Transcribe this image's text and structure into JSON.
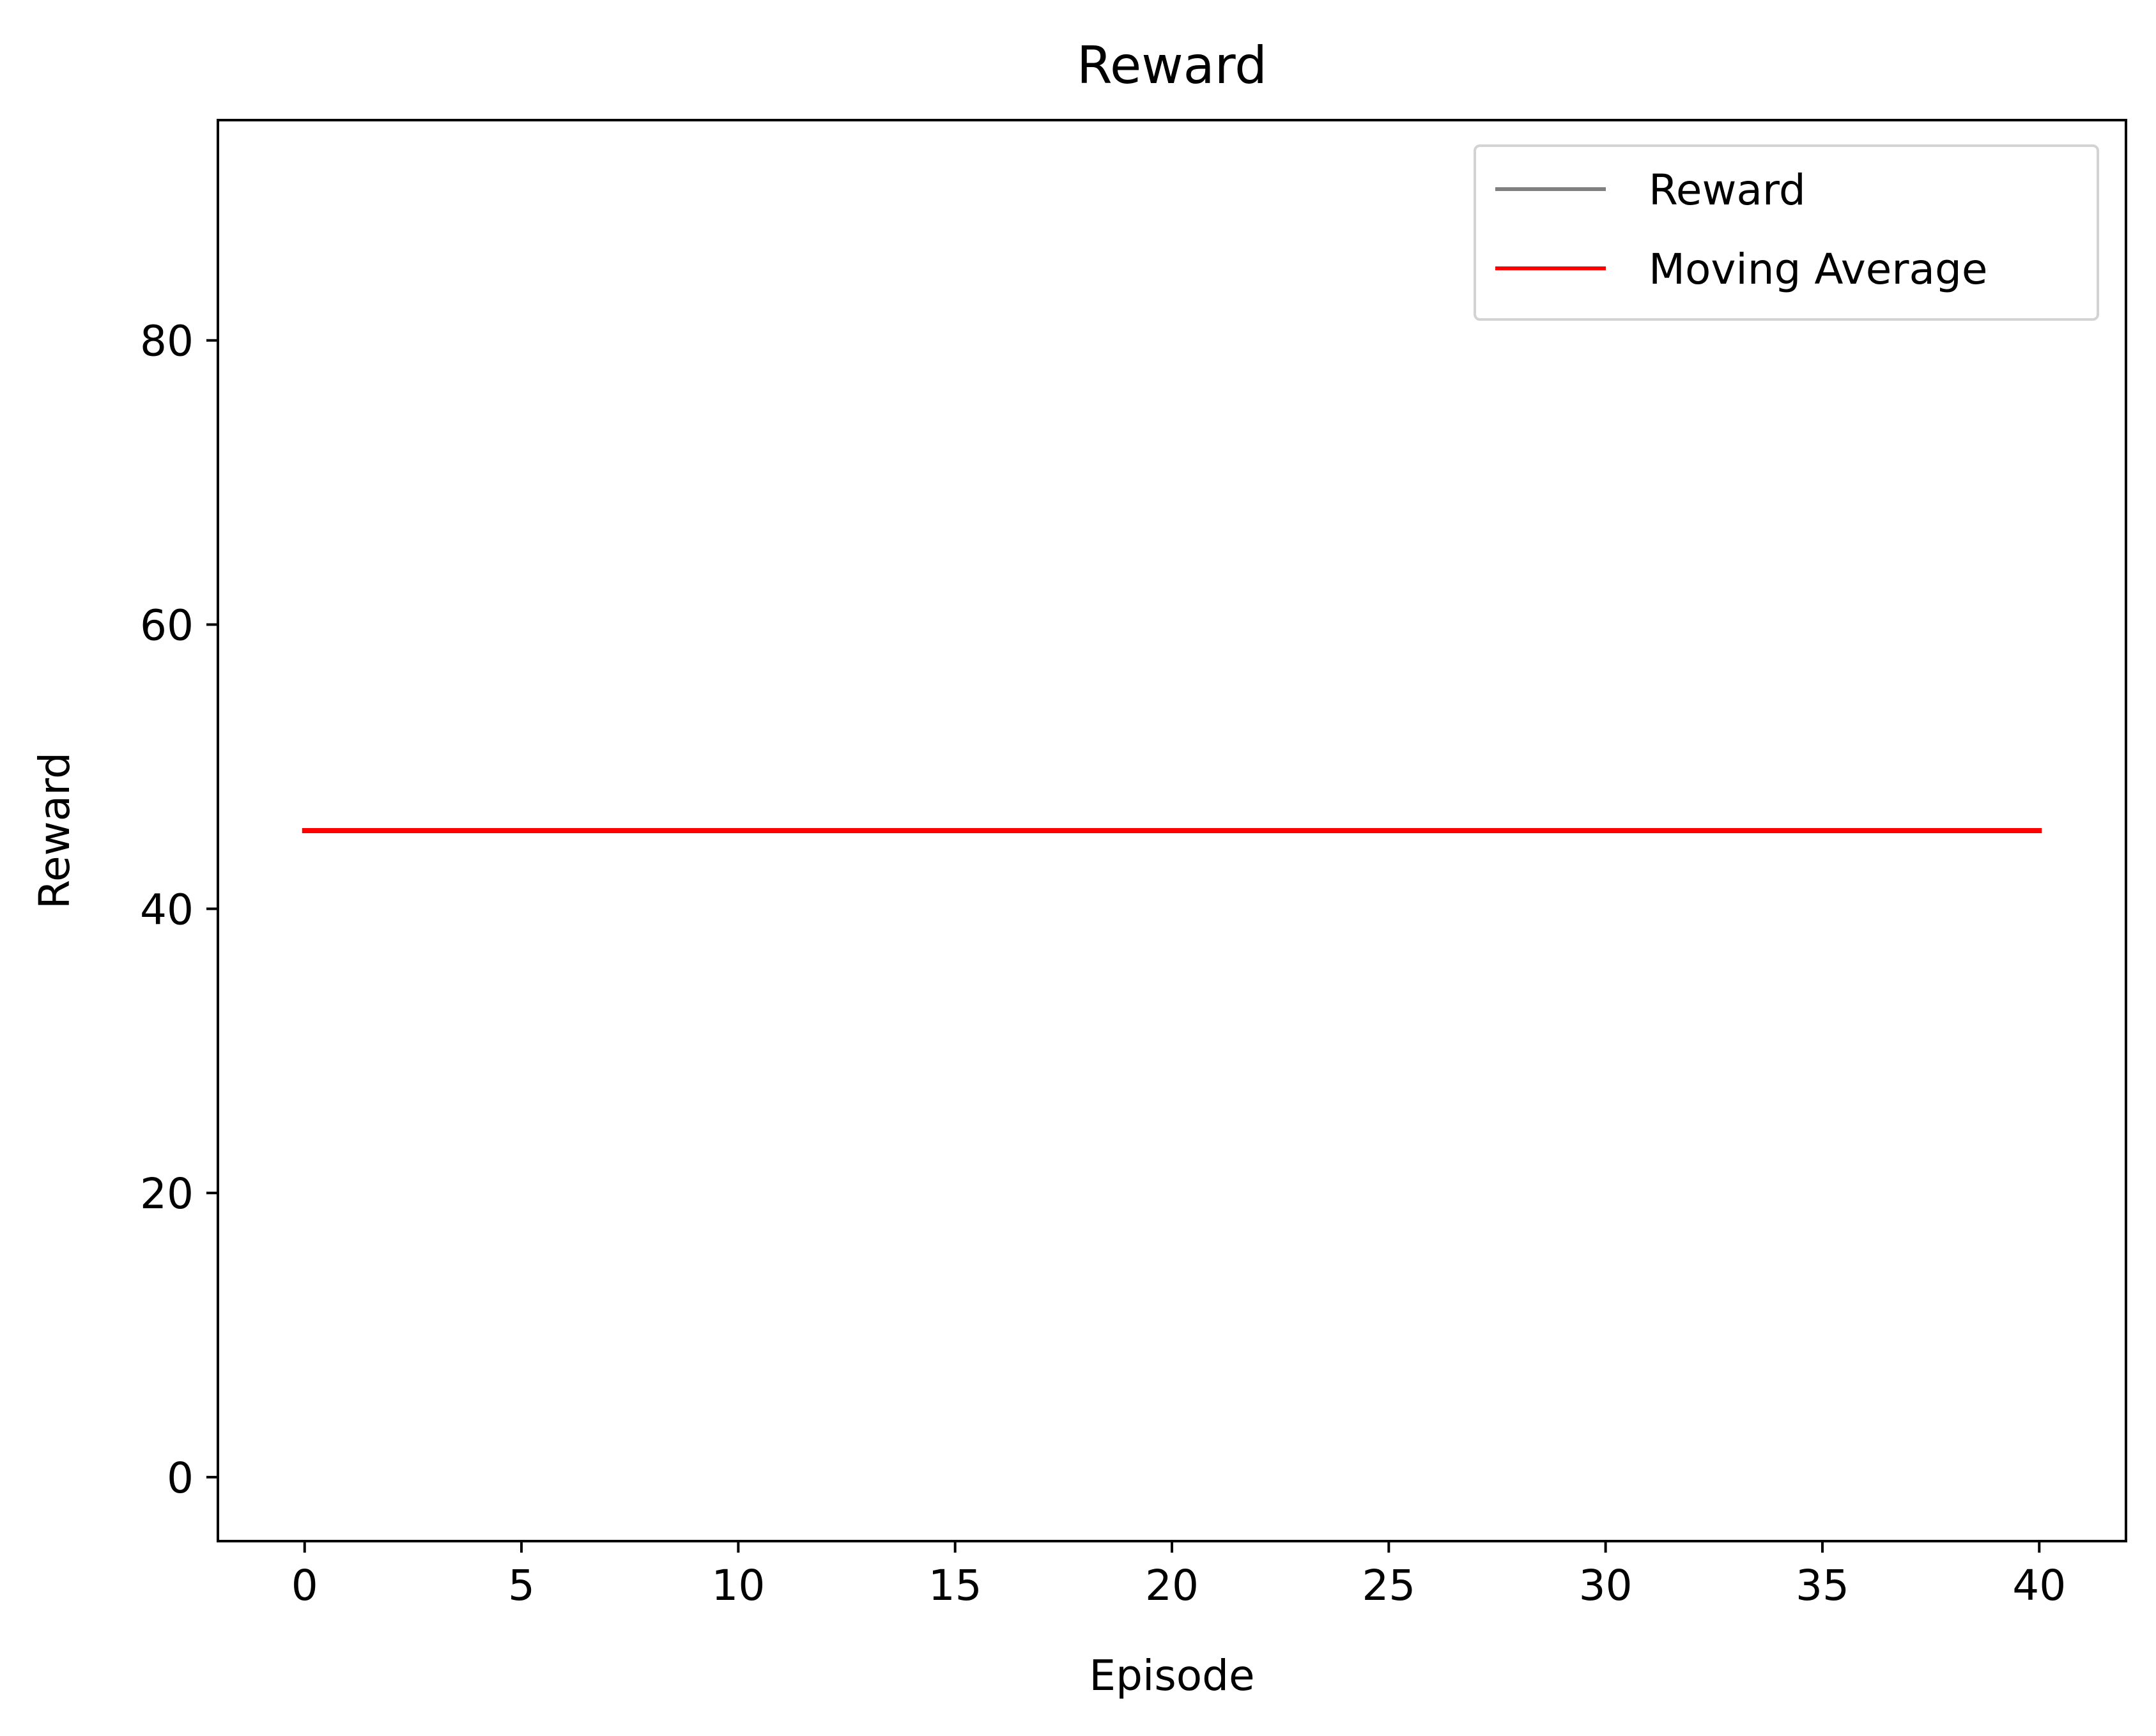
{
  "chart_data": {
    "type": "line",
    "title": "Reward",
    "xlabel": "Episode",
    "ylabel": "Reward",
    "xlim": [
      -2,
      42
    ],
    "ylim": [
      -4.5,
      95.5
    ],
    "xticks": [
      0,
      5,
      10,
      15,
      20,
      25,
      30,
      35,
      40
    ],
    "yticks": [
      0,
      20,
      40,
      60,
      80
    ],
    "grid": false,
    "legend_location": "top-right",
    "series": [
      {
        "name": "Reward",
        "color": "#808080",
        "x": [],
        "values": []
      },
      {
        "name": "Moving Average",
        "color": "#ff0000",
        "x": [
          0,
          40
        ],
        "values": [
          45.5,
          45.5
        ]
      }
    ]
  }
}
